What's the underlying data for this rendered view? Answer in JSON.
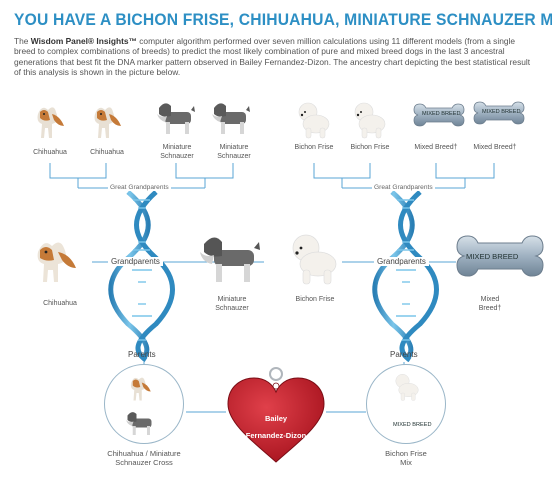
{
  "header": {
    "title": "YOU HAVE A BICHON FRISE, CHIHUAHUA, MINIATURE SCHNAUZER MIX",
    "intro_brand": "Wisdom Panel® Insights™",
    "intro_prefix": "The ",
    "intro_body": " computer algorithm performed over seven million calculations using 11 different models (from a single breed to complex combinations of breeds) to predict the most likely combination of pure and mixed breed dogs in the last 3 ancestral generations that best fit the DNA marker pattern observed in Bailey Fernandez-Dizon. The ancestry chart depicting the best statistical result of this analysis is shown in the picture below."
  },
  "great_grandparents": {
    "label": "Great Grandparents",
    "left": [
      "Chihuahua",
      "Chihuahua",
      "Miniature Schnauzer",
      "Miniature Schnauzer"
    ],
    "right": [
      "Bichon Frise",
      "Bichon Frise",
      "Mixed Breed†",
      "Mixed Breed†"
    ],
    "tag_text": "MIXED BREED"
  },
  "grandparents": {
    "label": "Grandparents",
    "items": [
      "Chihuahua",
      "Miniature Schnauzer",
      "Bichon Frise",
      "Mixed Breed†"
    ],
    "tag_text": "MIXED BREED"
  },
  "parents": {
    "label": "Parents",
    "left": "Chihuahua / Miniature Schnauzer Cross",
    "right": "Bichon Frise Mix",
    "tag_text": "MIXED BREED"
  },
  "dog": {
    "name_line1": "Bailey",
    "name_line2": "Fernandez-Dizon"
  },
  "colors": {
    "accent": "#2d8fc4",
    "helix": "#4aa8d8",
    "heart": "#c8202c",
    "tag": "#a9b8c6"
  }
}
